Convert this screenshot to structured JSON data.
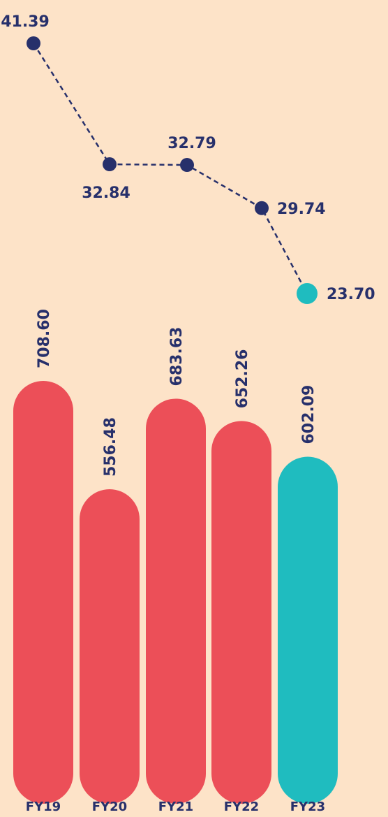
{
  "chart_data": {
    "type": "bar-line",
    "categories": [
      "FY19",
      "FY20",
      "FY21",
      "FY22",
      "FY23"
    ],
    "series": [
      {
        "type": "bar",
        "values": [
          708.6,
          556.48,
          683.63,
          652.26,
          602.09
        ],
        "value_labels": [
          "708.60",
          "556.48",
          "683.63",
          "652.26",
          "602.09"
        ],
        "colors": [
          "#ec4f58",
          "#ec4f58",
          "#ec4f58",
          "#ec4f58",
          "#1fbcbf"
        ]
      },
      {
        "type": "line",
        "color": "#27306b",
        "values": [
          41.39,
          32.84,
          32.79,
          29.74,
          23.7
        ],
        "value_labels": [
          "41.39",
          "32.84",
          "32.79",
          "29.74",
          "23.70"
        ],
        "colors": [
          "#27306b",
          "#27306b",
          "#27306b",
          "#27306b",
          "#1fbcbf"
        ]
      }
    ]
  }
}
